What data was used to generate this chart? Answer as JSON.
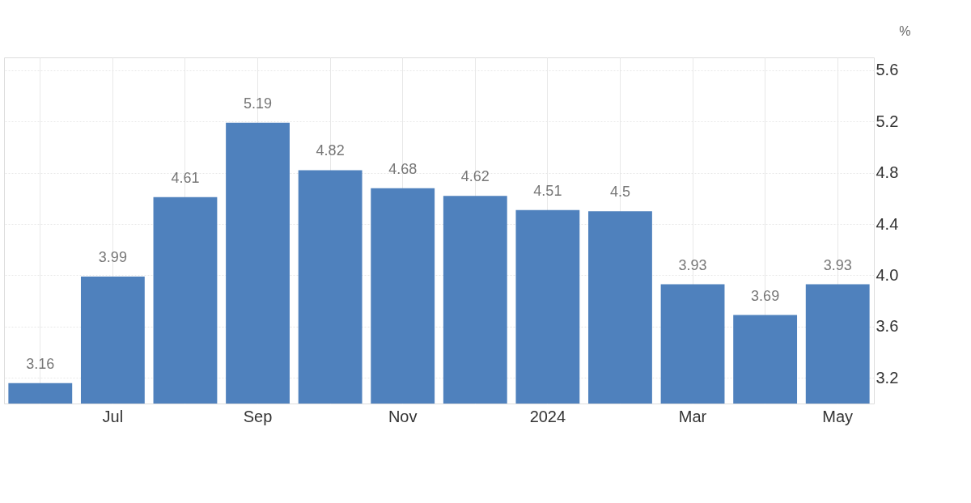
{
  "chart_data": {
    "type": "bar",
    "ylabel": "%",
    "categories": [
      null,
      "Jul",
      null,
      "Sep",
      null,
      "Nov",
      null,
      "2024",
      null,
      "Mar",
      null,
      "May"
    ],
    "values": [
      3.16,
      3.99,
      4.61,
      5.19,
      4.82,
      4.68,
      4.62,
      4.51,
      4.5,
      3.93,
      3.69,
      3.93
    ],
    "color": "#4f81bd",
    "ylim": [
      3.0,
      5.7
    ],
    "yticks": [
      3.2,
      3.6,
      {
        "value": 4,
        "label": "4.0"
      },
      4.4,
      4.8,
      5.2,
      5.6
    ],
    "grid": true,
    "data_labels": true
  }
}
